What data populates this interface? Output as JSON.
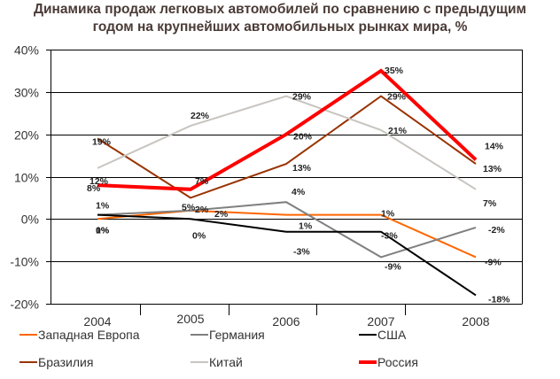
{
  "chart_data": {
    "type": "line",
    "title": "Динамика продаж легковых автомобилей по сравнению с предыдущим годом на крупнейших автомобильных рынках мира, %",
    "title_lines": [
      "Динамика продаж легковых автомобилей по сравнению с предыдущим",
      "годом на крупнейших автомобильных рынках мира, %"
    ],
    "xlabel": "",
    "ylabel": "",
    "categories": [
      "2004",
      "2005",
      "2006",
      "2007",
      "2008"
    ],
    "ylim": [
      -20,
      40
    ],
    "yticks": [
      40,
      30,
      20,
      10,
      0,
      -10,
      -20
    ],
    "ytick_labels": [
      "40%",
      "30%",
      "20%",
      "10%",
      "0%",
      "-10%",
      "-20%"
    ],
    "grid": true,
    "legend_position": "bottom",
    "series": [
      {
        "name": "Западная Европа",
        "color": "#ff6600",
        "values": [
          0,
          2,
          1,
          1,
          -9
        ],
        "labels": [
          "0%",
          "2%",
          "1%",
          "1%",
          "-9%"
        ],
        "bold": false
      },
      {
        "name": "Германия",
        "color": "#808080",
        "values": [
          1,
          2,
          4,
          -9,
          -2
        ],
        "labels": [
          "1%",
          "2%",
          "4%",
          "-9%",
          "-2%"
        ],
        "bold": false
      },
      {
        "name": "США",
        "color": "#000000",
        "values": [
          1,
          0,
          -3,
          -3,
          -18
        ],
        "labels": [
          "1%",
          "0%",
          "-3%",
          "-3%",
          "-18%"
        ],
        "bold": false
      },
      {
        "name": "Бразилия",
        "color": "#993300",
        "values": [
          19,
          5,
          13,
          29,
          13
        ],
        "labels": [
          "19%",
          "5%",
          "13%",
          "29%",
          "13%"
        ],
        "bold": false
      },
      {
        "name": "Китай",
        "color": "#c8c4c0",
        "values": [
          12,
          22,
          29,
          21,
          7
        ],
        "labels": [
          "12%",
          "22%",
          "29%",
          "21%",
          "7%"
        ],
        "bold": false
      },
      {
        "name": "Россия",
        "color": "#ff0000",
        "values": [
          8,
          7,
          20,
          35,
          14
        ],
        "labels": [
          "8%",
          "7%",
          "20%",
          "35%",
          "14%"
        ],
        "bold": true
      }
    ]
  }
}
